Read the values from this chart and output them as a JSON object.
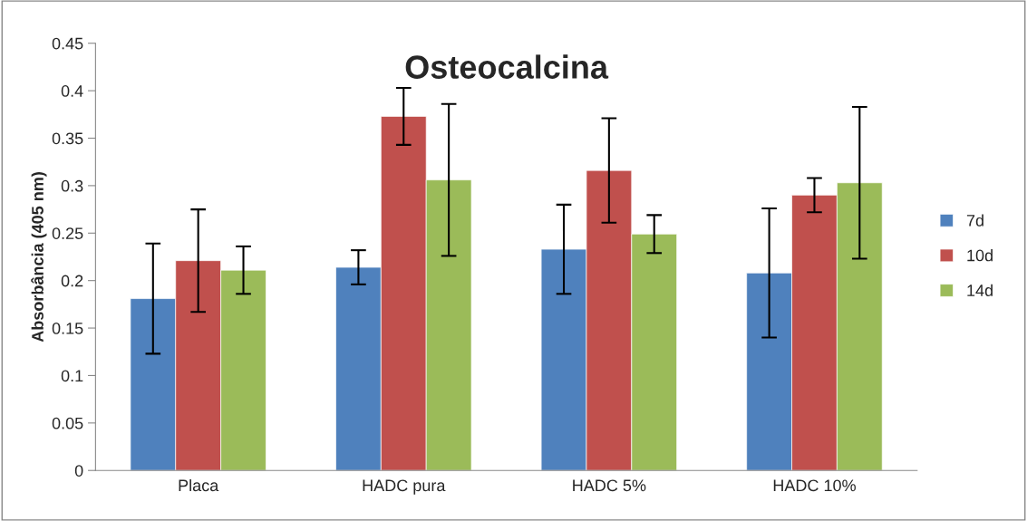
{
  "chart_data": {
    "type": "bar",
    "title": "Osteocalcina",
    "ylabel": "Absorbância (405 nm)",
    "categories": [
      "Placa",
      "HADC pura",
      "HADC 5%",
      "HADC 10%"
    ],
    "series": [
      {
        "name": "7d",
        "color": "#4f81bd",
        "values": [
          0.181,
          0.214,
          0.233,
          0.208
        ],
        "errors": [
          0.058,
          0.018,
          0.047,
          0.068
        ]
      },
      {
        "name": "10d",
        "color": "#c0504d",
        "values": [
          0.221,
          0.373,
          0.316,
          0.29
        ],
        "errors": [
          0.054,
          0.03,
          0.055,
          0.018
        ]
      },
      {
        "name": "14d",
        "color": "#9bbb59",
        "values": [
          0.211,
          0.306,
          0.249,
          0.303
        ],
        "errors": [
          0.025,
          0.08,
          0.02,
          0.08
        ]
      }
    ],
    "ylim": [
      0,
      0.45
    ],
    "yticks": [
      0,
      0.05,
      0.1,
      0.15,
      0.2,
      0.25,
      0.3,
      0.35,
      0.4,
      0.45
    ],
    "grid": false,
    "legend": "right"
  }
}
